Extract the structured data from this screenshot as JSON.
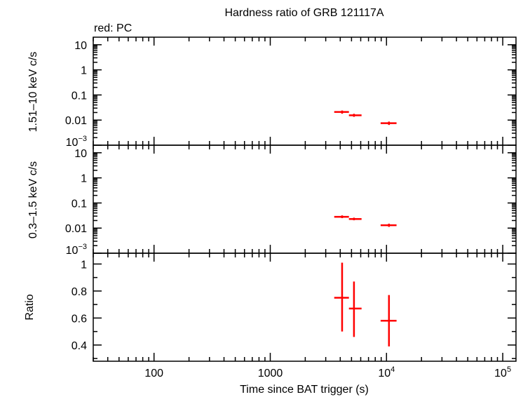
{
  "chart_data": {
    "type": "scatter",
    "title": "Hardness ratio of GRB 121117A",
    "subtitle": "red: PC",
    "xlabel": "Time since BAT trigger (s)",
    "x_scale": "log",
    "xlim": [
      30,
      130000
    ],
    "x_tick_labels": [
      "100",
      "1000",
      "10^4",
      "10^5"
    ],
    "series_color": "#ff0000",
    "panels": [
      {
        "ylabel": "1.51–10 keV c/s",
        "y_scale": "log",
        "ylim": [
          0.001,
          20
        ],
        "y_tick_labels": [
          "10",
          "1",
          "0.1",
          "0.01",
          "10^-3"
        ],
        "points": [
          {
            "x": 4150,
            "x_lo": 3550,
            "x_hi": 4750,
            "y": 0.021,
            "y_lo": 0.018,
            "y_hi": 0.024
          },
          {
            "x": 5250,
            "x_lo": 4750,
            "x_hi": 6100,
            "y": 0.0155,
            "y_lo": 0.0135,
            "y_hi": 0.0178
          },
          {
            "x": 10500,
            "x_lo": 8900,
            "x_hi": 12200,
            "y": 0.0075,
            "y_lo": 0.0064,
            "y_hi": 0.0087
          }
        ]
      },
      {
        "ylabel": "0.3–1.5 keV c/s",
        "y_scale": "log",
        "ylim": [
          0.001,
          20
        ],
        "y_tick_labels": [
          "10",
          "1",
          "0.1",
          "0.01",
          "10^-3"
        ],
        "points": [
          {
            "x": 4150,
            "x_lo": 3550,
            "x_hi": 4750,
            "y": 0.028,
            "y_lo": 0.025,
            "y_hi": 0.032
          },
          {
            "x": 5250,
            "x_lo": 4750,
            "x_hi": 6100,
            "y": 0.023,
            "y_lo": 0.0205,
            "y_hi": 0.026
          },
          {
            "x": 10500,
            "x_lo": 8900,
            "x_hi": 12200,
            "y": 0.013,
            "y_lo": 0.0112,
            "y_hi": 0.015
          }
        ]
      },
      {
        "ylabel": "Ratio",
        "y_scale": "linear",
        "ylim": [
          0.28,
          1.08
        ],
        "y_tick_labels": [
          "1",
          "0.8",
          "0.6",
          "0.4"
        ],
        "points": [
          {
            "x": 4150,
            "x_lo": 3550,
            "x_hi": 4750,
            "y": 0.75,
            "y_lo": 0.5,
            "y_hi": 1.01
          },
          {
            "x": 5250,
            "x_lo": 4750,
            "x_hi": 6100,
            "y": 0.67,
            "y_lo": 0.46,
            "y_hi": 0.87
          },
          {
            "x": 10500,
            "x_lo": 8900,
            "x_hi": 12200,
            "y": 0.58,
            "y_lo": 0.39,
            "y_hi": 0.77
          }
        ]
      }
    ]
  }
}
